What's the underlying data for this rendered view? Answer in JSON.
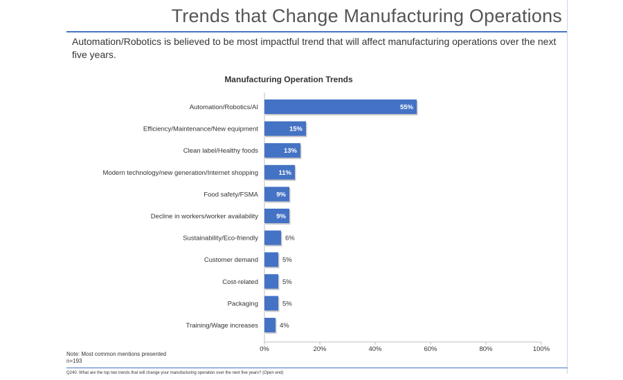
{
  "page": {
    "title": "Trends that Change Manufacturing Operations",
    "subtitle": "Automation/Robotics is believed to be most impactful trend that will affect manufacturing operations over the next five years.",
    "note_line1": "Note: Most common mentions presented",
    "note_line2": "n=193",
    "footnote": "Q240. What are the top two trends that will change your manufacturing operation over the next five years? (Open end)"
  },
  "chart_data": {
    "type": "bar",
    "orientation": "horizontal",
    "title": "Manufacturing Operation Trends",
    "categories": [
      "Automation/Robotics/AI",
      "Efficiency/Maintenance/New equipment",
      "Clean label/Healthy foods",
      "Modern technology/new generation/Internet shopping",
      "Food safety/FSMA",
      "Decline in workers/worker availability",
      "Sustainability/Eco-friendly",
      "Customer demand",
      "Cost-related",
      "Packaging",
      "Training/Wage increases"
    ],
    "values": [
      55,
      15,
      13,
      11,
      9,
      9,
      6,
      5,
      5,
      5,
      4
    ],
    "data_labels": [
      "55%",
      "15%",
      "13%",
      "11%",
      "9%",
      "9%",
      "6%",
      "5%",
      "5%",
      "5%",
      "4%"
    ],
    "xlim": [
      0,
      100
    ],
    "xticks": [
      0,
      20,
      40,
      60,
      80,
      100
    ],
    "xtick_labels": [
      "0%",
      "20%",
      "40%",
      "60%",
      "80%",
      "100%"
    ],
    "bar_color": "#4472c4",
    "grid": false
  }
}
